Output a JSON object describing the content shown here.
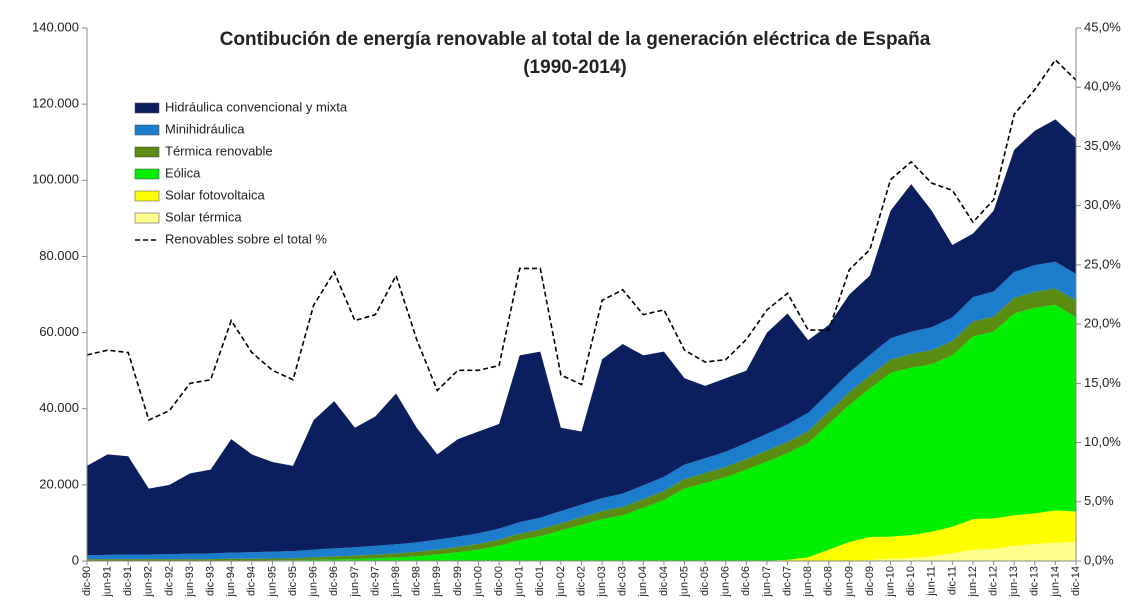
{
  "chart_data": {
    "type": "stacked_area",
    "title": "Contibución de energía renovable al total de la generación eléctrica de España",
    "subtitle": "(1990-2014)",
    "categories": [
      "dic-90",
      "jun-91",
      "dic-91",
      "jun-92",
      "dic-92",
      "jun-93",
      "dic-93",
      "jun-94",
      "dic-94",
      "jun-95",
      "dic-95",
      "jun-96",
      "dic-96",
      "jun-97",
      "dic-97",
      "jun-98",
      "dic-98",
      "jun-99",
      "dic-99",
      "jun-00",
      "dic-00",
      "jun-01",
      "dic-01",
      "jun-02",
      "dic-02",
      "jun-03",
      "dic-03",
      "jun-04",
      "dic-04",
      "jun-05",
      "dic-05",
      "jun-06",
      "dic-06",
      "jun-07",
      "dic-07",
      "jun-08",
      "dic-08",
      "jun-09",
      "dic-09",
      "jun-10",
      "dic-10",
      "jun-11",
      "dic-11",
      "jun-12",
      "dic-12",
      "jun-13",
      "dic-13",
      "jun-14",
      "dic-14"
    ],
    "series": [
      {
        "name": "Hidráulica convencional y mixta",
        "color": "#0b1f5e",
        "values": [
          23500,
          26400,
          25800,
          17300,
          18200,
          21100,
          22000,
          29800,
          25700,
          23550,
          22400,
          34000,
          38700,
          31400,
          34000,
          39600,
          30100,
          22400,
          25600,
          26700,
          27500,
          43800,
          43600,
          21900,
          19200,
          36500,
          39300,
          34100,
          32900,
          22700,
          19000,
          19300,
          19000,
          26600,
          29100,
          19100,
          17800,
          20500,
          20900,
          33500,
          38800,
          30600,
          19000,
          16700,
          21200,
          32100,
          35300,
          37400,
          35600
        ]
      },
      {
        "name": "Minihidráulica",
        "color": "#1b7dcc",
        "values": [
          1000,
          1100,
          1200,
          1200,
          1300,
          1400,
          1500,
          1600,
          1700,
          1800,
          1900,
          2000,
          2100,
          2200,
          2300,
          2400,
          2500,
          2600,
          2700,
          2800,
          2900,
          3000,
          3100,
          3200,
          3300,
          3400,
          3500,
          3600,
          3700,
          3800,
          3900,
          4000,
          4200,
          4400,
          4600,
          4800,
          5000,
          5200,
          5400,
          5600,
          5800,
          6000,
          6200,
          6400,
          6600,
          6800,
          7000,
          7000,
          7000
        ]
      },
      {
        "name": "Térmica renovable",
        "color": "#5b8c12",
        "values": [
          500,
          500,
          500,
          500,
          500,
          500,
          500,
          500,
          500,
          500,
          500,
          700,
          800,
          900,
          1000,
          1100,
          1200,
          1300,
          1400,
          1500,
          1600,
          1700,
          1800,
          1900,
          2000,
          2100,
          2200,
          2300,
          2400,
          2500,
          2600,
          2700,
          2800,
          2900,
          3000,
          3100,
          3200,
          3300,
          3400,
          3500,
          3600,
          3700,
          3800,
          3900,
          4000,
          4100,
          4200,
          4300,
          4400
        ]
      },
      {
        "name": "Eólica",
        "color": "#00ee00",
        "values": [
          0,
          0,
          0,
          0,
          0,
          0,
          0,
          100,
          100,
          150,
          200,
          300,
          400,
          500,
          700,
          900,
          1200,
          1700,
          2300,
          3000,
          4000,
          5500,
          6500,
          8000,
          9500,
          11000,
          12000,
          14000,
          16000,
          19000,
          20500,
          22000,
          24000,
          26000,
          28000,
          30000,
          33000,
          36000,
          39000,
          43000,
          44000,
          44000,
          45000,
          48000,
          49000,
          53000,
          54000,
          54000,
          51000
        ]
      },
      {
        "name": "Solar fotovoltaica",
        "color": "#ffff00",
        "values": [
          0,
          0,
          0,
          0,
          0,
          0,
          0,
          0,
          0,
          0,
          0,
          0,
          0,
          0,
          0,
          0,
          0,
          0,
          0,
          0,
          0,
          0,
          0,
          0,
          0,
          0,
          0,
          0,
          0,
          0,
          0,
          0,
          0,
          100,
          300,
          1000,
          3000,
          5000,
          6000,
          5800,
          6000,
          6500,
          7000,
          8000,
          8000,
          8000,
          8000,
          8500,
          8000
        ]
      },
      {
        "name": "Solar térmica",
        "color": "#ffff8a",
        "values": [
          0,
          0,
          0,
          0,
          0,
          0,
          0,
          0,
          0,
          0,
          0,
          0,
          0,
          0,
          0,
          0,
          0,
          0,
          0,
          0,
          0,
          0,
          0,
          0,
          0,
          0,
          0,
          0,
          0,
          0,
          0,
          0,
          0,
          0,
          0,
          0,
          0,
          0,
          300,
          600,
          800,
          1200,
          2000,
          3000,
          3200,
          4000,
          4500,
          4800,
          5000
        ]
      },
      {
        "name": "Renovables sobre el total %",
        "color": "#000000",
        "axis": "y2",
        "dashed": true,
        "values": [
          17.4,
          17.8,
          17.6,
          11.9,
          12.7,
          15.0,
          15.3,
          20.3,
          17.6,
          16.1,
          15.3,
          21.6,
          24.4,
          20.3,
          20.8,
          24.1,
          18.7,
          14.4,
          16.1,
          16.1,
          16.5,
          24.7,
          24.7,
          15.7,
          14.9,
          22.0,
          22.9,
          20.8,
          21.2,
          17.8,
          16.8,
          17.0,
          18.7,
          21.2,
          22.6,
          19.5,
          19.5,
          24.6,
          26.3,
          32.2,
          33.7,
          31.9,
          31.3,
          28.6,
          30.5,
          37.7,
          39.8,
          42.3,
          40.6
        ]
      }
    ],
    "ylim": [
      0,
      140000
    ],
    "yticks": [
      0,
      {
        "value": 20000,
        "label": "20.000"
      },
      {
        "value": 40000,
        "label": "40.000"
      },
      {
        "value": 60000,
        "label": "60.000"
      },
      {
        "value": 80000,
        "label": "80.000"
      },
      {
        "value": 100000,
        "label": "100.000"
      },
      {
        "value": 120000,
        "label": "120.000"
      },
      {
        "value": 140000,
        "label": "140.000"
      }
    ],
    "y2lim": [
      0,
      45
    ],
    "y2ticks": [
      {
        "value": 0,
        "label": "0,0%"
      },
      {
        "value": 5,
        "label": "5,0%"
      },
      {
        "value": 10,
        "label": "10,0%"
      },
      {
        "value": 15,
        "label": "15,0%"
      },
      {
        "value": 20,
        "label": "20,0%"
      },
      {
        "value": 25,
        "label": "25,0%"
      },
      {
        "value": 30,
        "label": "30,0%"
      },
      {
        "value": 35,
        "label": "35,0%"
      },
      {
        "value": 40,
        "label": "40,0%"
      },
      {
        "value": 45,
        "label": "45,0%"
      }
    ],
    "legend": "upper left"
  }
}
